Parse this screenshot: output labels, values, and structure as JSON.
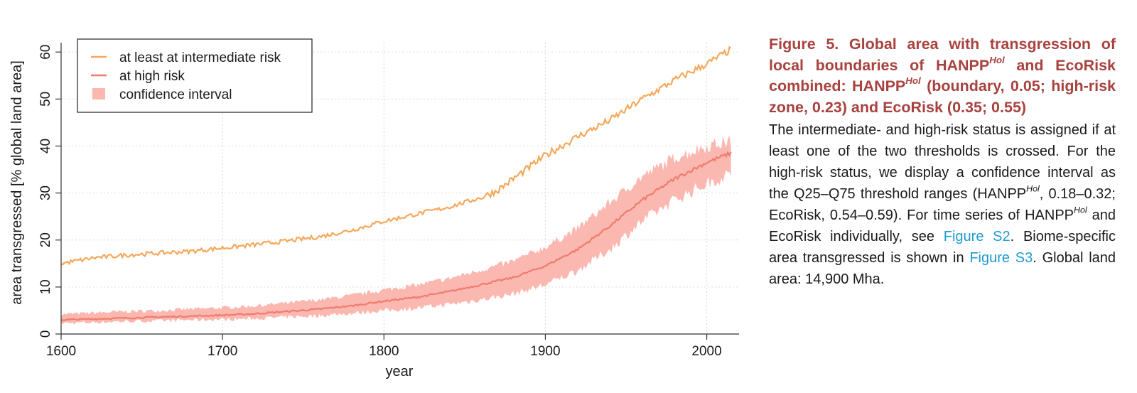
{
  "chart_data": {
    "type": "line",
    "title": "",
    "xlabel": "year",
    "ylabel": "area transgressed [% global land area]",
    "xlim": [
      1600,
      2020
    ],
    "ylim": [
      0,
      62
    ],
    "xticks": [
      1600,
      1700,
      1800,
      1900,
      2000
    ],
    "yticks": [
      0,
      10,
      20,
      30,
      40,
      50,
      60
    ],
    "grid": true,
    "legend_position": "top-left",
    "series": [
      {
        "name": "at least at intermediate risk",
        "color": "#f5a95b",
        "x": [
          1600,
          1620,
          1640,
          1660,
          1680,
          1700,
          1720,
          1740,
          1760,
          1780,
          1800,
          1820,
          1840,
          1860,
          1870,
          1880,
          1900,
          1920,
          1940,
          1960,
          1980,
          2000,
          2015
        ],
        "y": [
          15,
          16.2,
          16.8,
          17.2,
          17.6,
          18.3,
          19,
          19.8,
          20.7,
          22.1,
          24,
          25.5,
          27,
          29,
          30.5,
          33,
          38,
          42,
          45.5,
          50,
          54,
          57.5,
          60.5
        ]
      },
      {
        "name": "at high risk",
        "color": "#ee7d6e",
        "x": [
          1600,
          1620,
          1640,
          1660,
          1680,
          1700,
          1720,
          1740,
          1760,
          1780,
          1800,
          1820,
          1840,
          1860,
          1880,
          1900,
          1920,
          1940,
          1960,
          1980,
          2000,
          2015
        ],
        "y": [
          3,
          3.2,
          3.4,
          3.6,
          3.8,
          4,
          4.3,
          4.8,
          5.3,
          6,
          7,
          7.8,
          9,
          10.5,
          12,
          14.5,
          18,
          23,
          28.5,
          33,
          36.5,
          38.5
        ],
        "lower": [
          2.3,
          2.5,
          2.7,
          2.8,
          3,
          3.1,
          3.3,
          3.6,
          3.9,
          4.4,
          5,
          5.5,
          6.3,
          7.3,
          8.5,
          10.5,
          13.5,
          18,
          24,
          28.5,
          32,
          34
        ],
        "upper": [
          4.2,
          4.5,
          4.8,
          5,
          5.3,
          5.6,
          6,
          6.6,
          7.3,
          8.2,
          9.4,
          10.4,
          11.8,
          13.6,
          15.5,
          18.5,
          22.5,
          28,
          33.5,
          37.5,
          40,
          41
        ]
      }
    ],
    "band_label": "confidence interval",
    "band_color": "#fbb8b0"
  },
  "caption": {
    "title_1": "Figure 5.  Global area with transgression of local boundaries of HANPP",
    "title_sup_1": "Hol",
    "title_2": " and EcoRisk combined: HANPP",
    "title_sup_2": "Hol",
    "title_3": " (boundary, 0.05; high-risk zone, 0.23) and EcoRisk (0.35; 0.55)",
    "body_1": "The intermediate- and high-risk status is assigned if at least one of the two thresholds is crossed. For the high-risk status, we display a confidence interval as the Q25–Q75 threshold ranges (HANPP",
    "body_sup_1": "Hol",
    "body_2": ", 0.18–0.32; EcoRisk, 0.54–0.59). For time series of HANPP",
    "body_sup_2": "Hol",
    "body_3": " and EcoRisk individually, see ",
    "link_1": "Figure S2",
    "body_4": ". Biome-specific area transgressed is shown in ",
    "link_2": "Figure S3",
    "body_5": ". Global land area: 14,900 Mha."
  }
}
